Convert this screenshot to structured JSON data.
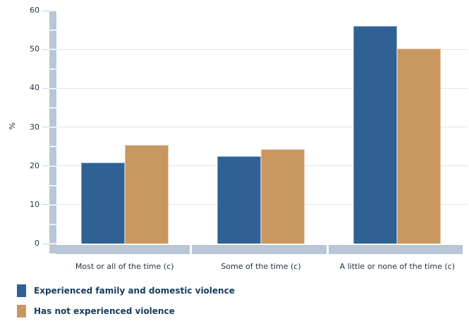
{
  "chart_data": {
    "type": "bar",
    "title": "",
    "xlabel": "",
    "ylabel": "%",
    "ylim": [
      0,
      60
    ],
    "yticks": [
      0,
      10,
      20,
      30,
      40,
      50,
      60
    ],
    "grid": true,
    "legend_position": "bottom-left",
    "categories": [
      "Most or all of the time (c)",
      "Some of the time (c)",
      "A little or none of the time (c)"
    ],
    "series": [
      {
        "name": "Experienced family and domestic violence",
        "color": "#2f6195",
        "values": [
          20.8,
          22.4,
          56.1
        ]
      },
      {
        "name": "Has not experienced violence",
        "color": "#c89760",
        "values": [
          25.4,
          24.3,
          50.2
        ]
      }
    ]
  },
  "colors": {
    "axis_band": "#b8c6d5",
    "gridline": "#e4e4e4",
    "tick_dash": "#c8d2dd",
    "axis_text": "#1f3044",
    "legend_text": "#173a5e",
    "background": "#ffffff"
  }
}
